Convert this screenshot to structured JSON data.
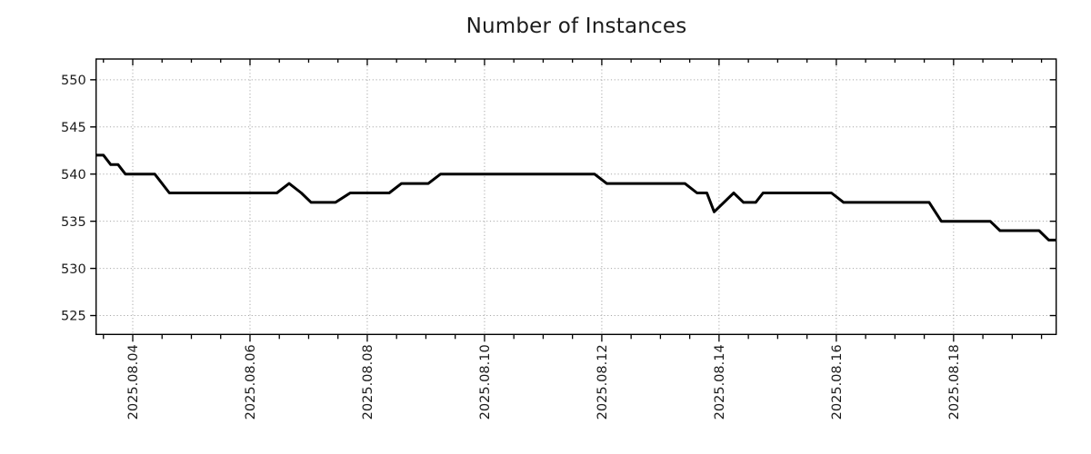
{
  "chart": {
    "title": "Number of Instances"
  },
  "chart_data": {
    "type": "line",
    "title": "Number of Instances",
    "x_axis": {
      "label": "",
      "kind": "time",
      "start_datetime": "2025-08-03 09:00",
      "end_datetime": "2025-08-19 18:00",
      "range_hours": [
        0,
        393
      ],
      "major_ticks": [
        {
          "hour": 15,
          "label": "2025.08.04"
        },
        {
          "hour": 63,
          "label": "2025.08.06"
        },
        {
          "hour": 111,
          "label": "2025.08.08"
        },
        {
          "hour": 159,
          "label": "2025.08.10"
        },
        {
          "hour": 207,
          "label": "2025.08.12"
        },
        {
          "hour": 255,
          "label": "2025.08.14"
        },
        {
          "hour": 303,
          "label": "2025.08.16"
        },
        {
          "hour": 351,
          "label": "2025.08.18"
        }
      ],
      "minor_tick_start_hour": 3,
      "minor_tick_every_hours": 12
    },
    "y_axis": {
      "label": "",
      "range": [
        523.0,
        552.2
      ],
      "ticks": [
        525,
        530,
        535,
        540,
        545,
        550
      ]
    },
    "grid": {
      "style": "dotted",
      "color": "#a9a9a9"
    },
    "legend": "none",
    "series": [
      {
        "name": "Number of Instances",
        "color": "#000000",
        "line_width": 3,
        "points_hours_value": [
          [
            0,
            542
          ],
          [
            3,
            542
          ],
          [
            6,
            541
          ],
          [
            9,
            541
          ],
          [
            12,
            540
          ],
          [
            24,
            540
          ],
          [
            30,
            538
          ],
          [
            74,
            538
          ],
          [
            79,
            539
          ],
          [
            84,
            538
          ],
          [
            88,
            537
          ],
          [
            98,
            537
          ],
          [
            104,
            538
          ],
          [
            120,
            538
          ],
          [
            125,
            539
          ],
          [
            136,
            539
          ],
          [
            141,
            540
          ],
          [
            204,
            540
          ],
          [
            209,
            539
          ],
          [
            241,
            539
          ],
          [
            246,
            538
          ],
          [
            250,
            538
          ],
          [
            253,
            536
          ],
          [
            261,
            538
          ],
          [
            265,
            537
          ],
          [
            270,
            537
          ],
          [
            273,
            538
          ],
          [
            301,
            538
          ],
          [
            306,
            537
          ],
          [
            341,
            537
          ],
          [
            346,
            535
          ],
          [
            366,
            535
          ],
          [
            370,
            534
          ],
          [
            386,
            534
          ],
          [
            390,
            533
          ],
          [
            393,
            533
          ]
        ]
      }
    ],
    "style": {
      "background": "#ffffff",
      "axis_color": "#000000",
      "text_color": "#1c1c1c",
      "tick_label_size": 14.5
    }
  }
}
